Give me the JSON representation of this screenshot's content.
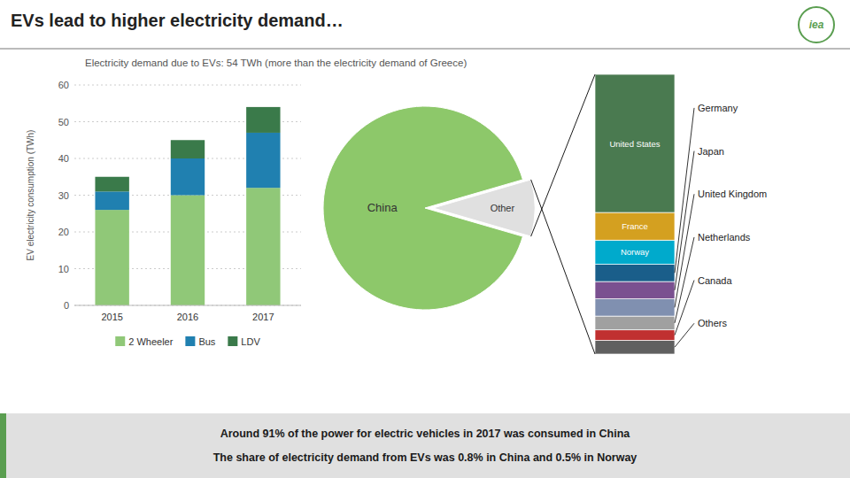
{
  "chart_data": [
    {
      "type": "bar",
      "title": "EVs lead to higher electricity demand…",
      "subtitle": "Electricity demand due to EVs: 54 TWh (more than the electricity demand of Greece)",
      "annotations": [
        "iea",
        "Around 91% of the power for electric vehicles in 2017 was consumed in China",
        "The share of electricity demand from EVs was 0.8% in China and 0.5% in Norway"
      ],
      "stacked": true,
      "categories": [
        "2015",
        "2016",
        "2017"
      ],
      "series": [
        {
          "name": "2 Wheeler",
          "color": "#90C878",
          "values": [
            26,
            30,
            32
          ]
        },
        {
          "name": "Bus",
          "color": "#2080B0",
          "values": [
            5,
            10,
            15
          ]
        },
        {
          "name": "LDV",
          "color": "#3A7A4A",
          "values": [
            4,
            5,
            7
          ]
        }
      ],
      "ylabel": "EV electricity consumption (TWh)",
      "ylim": [
        0,
        60
      ],
      "yticks": [
        0,
        10,
        20,
        30,
        40,
        50,
        60
      ],
      "grid": true,
      "legend": "bottom"
    },
    {
      "type": "pie",
      "categories": [
        "China",
        "Other"
      ],
      "values": [
        91,
        9
      ],
      "colors": [
        "#8DC86A",
        "#e0e0e0"
      ]
    },
    {
      "type": "bar",
      "stacked": true,
      "tick_labels": false,
      "categories": [
        null
      ],
      "ylim": [
        0,
        81
      ],
      "series": [
        {
          "name": "United States",
          "color": "#4A7A50",
          "values": [
            40
          ]
        },
        {
          "name": "France",
          "color": "#D4A020",
          "values": [
            8
          ]
        },
        {
          "name": "Norway",
          "color": "#00AACC",
          "values": [
            7
          ]
        },
        {
          "name": "Germany",
          "color": "#1A5E8A",
          "values": [
            5
          ]
        },
        {
          "name": "Japan",
          "color": "#7A5090",
          "values": [
            5
          ]
        },
        {
          "name": "United Kingdom",
          "color": "#8090B0",
          "values": [
            5
          ]
        },
        {
          "name": "Netherlands",
          "color": "#A0A0A0",
          "values": [
            4
          ]
        },
        {
          "name": "Canada",
          "color": "#C03030",
          "values": [
            3
          ]
        },
        {
          "name": "Others",
          "color": "#606060",
          "values": [
            4
          ]
        }
      ]
    }
  ]
}
